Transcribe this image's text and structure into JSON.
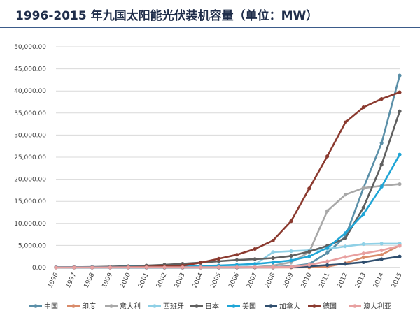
{
  "title": "1996-2015 年九国太阳能光伏装机容量（单位：MW）",
  "chart_data": {
    "type": "line",
    "title": "1996-2015 年九国太阳能光伏装机容量（单位：MW）",
    "xlabel": "",
    "ylabel": "",
    "categories": [
      "1996",
      "1997",
      "1998",
      "1999",
      "2000",
      "2001",
      "2002",
      "2003",
      "2004",
      "2005",
      "2006",
      "2007",
      "2008",
      "2009",
      "2010",
      "2011",
      "2012",
      "2013",
      "2014",
      "2015"
    ],
    "ylim": [
      0,
      50000
    ],
    "yticks": [
      0,
      5000,
      10000,
      15000,
      20000,
      25000,
      30000,
      35000,
      40000,
      45000,
      50000
    ],
    "ytick_labels": [
      "0.00",
      "5,000.00",
      "10,000.00",
      "15,000.00",
      "20,000.00",
      "25,000.00",
      "30,000.00",
      "35,000.00",
      "40,000.00",
      "45,000.00",
      "50,000.00"
    ],
    "grid": true,
    "legend_position": "bottom",
    "series": [
      {
        "name": "中国",
        "color": "#5a8fa8",
        "values": [
          10,
          15,
          20,
          25,
          30,
          35,
          40,
          50,
          60,
          70,
          80,
          100,
          140,
          300,
          800,
          3300,
          7000,
          18000,
          28200,
          43500
        ]
      },
      {
        "name": "印度",
        "color": "#d98b6a",
        "values": [
          0,
          0,
          0,
          0,
          0,
          0,
          0,
          0,
          0,
          0,
          0,
          0,
          0,
          10,
          40,
          200,
          1000,
          2300,
          2900,
          5000
        ]
      },
      {
        "name": "意大利",
        "color": "#a8a8a8",
        "values": [
          10,
          15,
          20,
          20,
          20,
          20,
          25,
          30,
          40,
          50,
          50,
          100,
          450,
          1200,
          3500,
          12800,
          16500,
          18000,
          18500,
          18900
        ]
      },
      {
        "name": "西班牙",
        "color": "#8fd0e6",
        "values": [
          5,
          8,
          10,
          10,
          10,
          10,
          20,
          30,
          60,
          150,
          300,
          700,
          3500,
          3700,
          3900,
          4200,
          4800,
          5300,
          5400,
          5400
        ]
      },
      {
        "name": "日本",
        "color": "#5f5f5f",
        "values": [
          60,
          90,
          130,
          200,
          330,
          450,
          640,
          860,
          1130,
          1420,
          1710,
          1920,
          2140,
          2630,
          3620,
          4910,
          6630,
          13600,
          23300,
          35400
        ]
      },
      {
        "name": "美国",
        "color": "#1fa5d6",
        "values": [
          80,
          90,
          100,
          115,
          140,
          170,
          210,
          270,
          360,
          480,
          620,
          830,
          1170,
          1620,
          2530,
          4430,
          7800,
          12100,
          18300,
          25600
        ]
      },
      {
        "name": "加拿大",
        "color": "#2f4e6e",
        "values": [
          0,
          0,
          0,
          0,
          0,
          0,
          0,
          0,
          10,
          15,
          20,
          25,
          30,
          95,
          290,
          560,
          830,
          1200,
          1900,
          2500
        ]
      },
      {
        "name": "德国",
        "color": "#8b3a2f",
        "values": [
          30,
          40,
          50,
          70,
          100,
          180,
          300,
          430,
          1100,
          2000,
          2900,
          4200,
          6100,
          10500,
          17900,
          25200,
          32900,
          36300,
          38200,
          39700
        ]
      },
      {
        "name": "澳大利亚",
        "color": "#e8a0a0",
        "values": [
          20,
          25,
          30,
          35,
          40,
          45,
          50,
          55,
          60,
          70,
          80,
          90,
          100,
          180,
          600,
          1400,
          2400,
          3200,
          3900,
          4900
        ]
      }
    ]
  }
}
